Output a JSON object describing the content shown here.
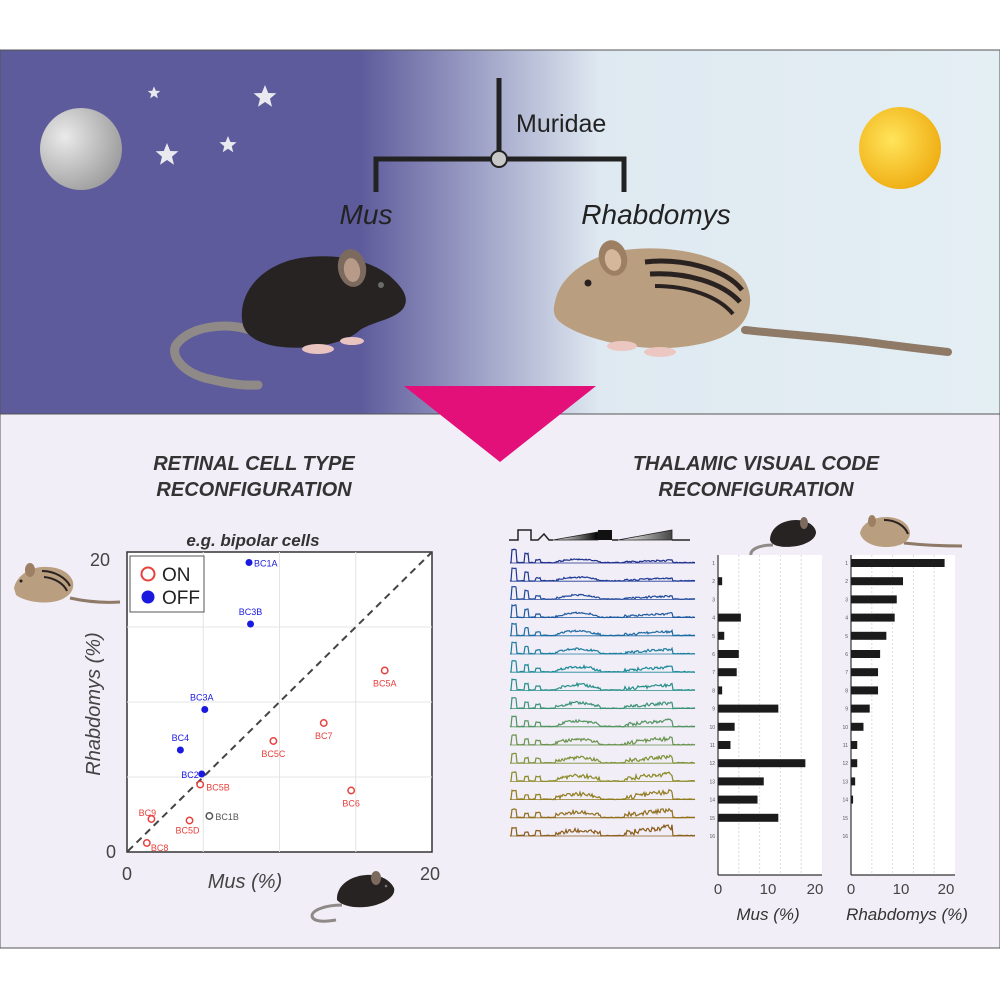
{
  "top": {
    "family_label": "Muridae",
    "genus_left": "Mus",
    "genus_right": "Rhabdomys",
    "colors": {
      "night": "#5e5b9c",
      "day": "#e4eff4",
      "arrow": "#e3107a",
      "sun": "#f2b90f",
      "moon": "#b4b4b4"
    }
  },
  "left_panel": {
    "title_line1": "RETINAL CELL TYPE",
    "title_line2": "RECONFIGURATION",
    "subtitle": "e.g. bipolar cells",
    "legend": {
      "on_label": "ON",
      "off_label": "OFF",
      "on_color": "#e8403c",
      "off_color": "#1a1adf"
    },
    "chart_data": {
      "type": "scatter",
      "xlabel": "Mus (%)",
      "ylabel": "Rhabdomys (%)",
      "xlim": [
        0,
        20
      ],
      "ylim": [
        0,
        20
      ],
      "xticks": [
        "0",
        "20"
      ],
      "yticks": [
        "0",
        "20"
      ],
      "reference_line": "y = x",
      "points": [
        {
          "label": "BC1A",
          "type": "OFF",
          "x": 8.0,
          "y": 19.3
        },
        {
          "label": "BC3B",
          "type": "OFF",
          "x": 8.1,
          "y": 15.2
        },
        {
          "label": "BC3A",
          "type": "OFF",
          "x": 5.1,
          "y": 9.5
        },
        {
          "label": "BC4",
          "type": "OFF",
          "x": 3.5,
          "y": 6.8
        },
        {
          "label": "BC2",
          "type": "OFF",
          "x": 4.9,
          "y": 5.2
        },
        {
          "label": "BC5A",
          "type": "ON",
          "x": 16.9,
          "y": 12.1
        },
        {
          "label": "BC7",
          "type": "ON",
          "x": 12.9,
          "y": 8.6
        },
        {
          "label": "BC5C",
          "type": "ON",
          "x": 9.6,
          "y": 7.4
        },
        {
          "label": "BC5B",
          "type": "ON",
          "x": 4.8,
          "y": 4.5
        },
        {
          "label": "BC6",
          "type": "ON",
          "x": 14.7,
          "y": 4.1
        },
        {
          "label": "BC9",
          "type": "ON",
          "x": 1.6,
          "y": 2.2
        },
        {
          "label": "BC5D",
          "type": "ON",
          "x": 4.1,
          "y": 2.1
        },
        {
          "label": "BC8",
          "type": "ON",
          "x": 1.3,
          "y": 0.6
        },
        {
          "label": "BC1B",
          "type": "OTHER",
          "x": 5.4,
          "y": 2.4
        }
      ]
    }
  },
  "right_panel": {
    "title_line1": "THALAMIC VISUAL CODE",
    "title_line2": "RECONFIGURATION",
    "trace_colors": [
      "#1e2f8c",
      "#1f3a94",
      "#20499b",
      "#1f5aa0",
      "#1d6ba2",
      "#1c7c9f",
      "#1c8a98",
      "#258f88",
      "#3d9277",
      "#549461",
      "#6a934c",
      "#7c9137",
      "#8a8a25",
      "#917d1f",
      "#916e1c",
      "#8a5c1a"
    ],
    "chart_data": [
      {
        "type": "bar",
        "orientation": "horizontal",
        "xlabel": "Mus (%)",
        "xlim": [
          0,
          25
        ],
        "xticks": [
          "0",
          "10",
          "20"
        ],
        "categories": [
          "1",
          "2",
          "3",
          "4",
          "5",
          "6",
          "7",
          "8",
          "9",
          "10",
          "11",
          "12",
          "13",
          "14",
          "15",
          "16"
        ],
        "values": [
          0,
          1,
          0,
          5.5,
          1.5,
          5,
          4.5,
          1,
          14.5,
          4,
          3,
          21,
          11,
          9.5,
          14.5,
          0
        ]
      },
      {
        "type": "bar",
        "orientation": "horizontal",
        "xlabel": "Rhabdomys (%)",
        "xlim": [
          0,
          25
        ],
        "xticks": [
          "0",
          "10",
          "20"
        ],
        "categories": [
          "1",
          "2",
          "3",
          "4",
          "5",
          "6",
          "7",
          "8",
          "9",
          "10",
          "11",
          "12",
          "13",
          "14",
          "15",
          "16"
        ],
        "values": [
          22.5,
          12.5,
          11,
          10.5,
          8.5,
          7,
          6.5,
          6.5,
          4.5,
          3,
          1.5,
          1.5,
          1,
          0.5,
          0,
          0
        ]
      }
    ]
  }
}
